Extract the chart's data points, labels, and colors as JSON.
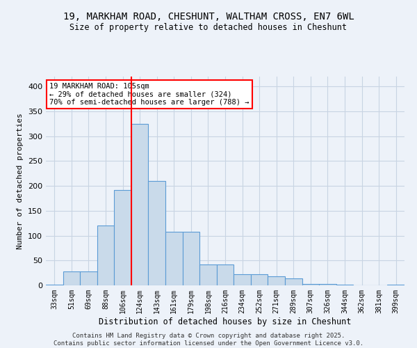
{
  "title_line1": "19, MARKHAM ROAD, CHESHUNT, WALTHAM CROSS, EN7 6WL",
  "title_line2": "Size of property relative to detached houses in Cheshunt",
  "xlabel": "Distribution of detached houses by size in Cheshunt",
  "ylabel": "Number of detached properties",
  "categories": [
    "33sqm",
    "51sqm",
    "69sqm",
    "88sqm",
    "106sqm",
    "124sqm",
    "143sqm",
    "161sqm",
    "179sqm",
    "198sqm",
    "216sqm",
    "234sqm",
    "252sqm",
    "271sqm",
    "289sqm",
    "307sqm",
    "326sqm",
    "344sqm",
    "362sqm",
    "381sqm",
    "399sqm"
  ],
  "values": [
    2,
    28,
    28,
    120,
    192,
    325,
    210,
    108,
    108,
    42,
    42,
    22,
    22,
    18,
    14,
    3,
    3,
    1,
    0,
    0,
    2
  ],
  "bar_color": "#c9daea",
  "bar_edge_color": "#5b9bd5",
  "grid_color": "#c8d4e3",
  "background_color": "#edf2f9",
  "red_line_index": 4.5,
  "annotation_text": "19 MARKHAM ROAD: 105sqm\n← 29% of detached houses are smaller (324)\n70% of semi-detached houses are larger (788) →",
  "annotation_box_color": "white",
  "annotation_box_edge": "red",
  "footer_line1": "Contains HM Land Registry data © Crown copyright and database right 2025.",
  "footer_line2": "Contains public sector information licensed under the Open Government Licence v3.0.",
  "ylim": [
    0,
    420
  ],
  "yticks": [
    0,
    50,
    100,
    150,
    200,
    250,
    300,
    350,
    400
  ]
}
